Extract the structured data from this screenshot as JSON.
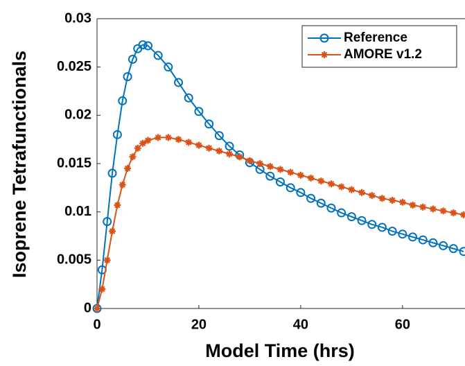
{
  "chart_data": {
    "type": "line",
    "xlabel": "Model Time (hrs)",
    "ylabel": "Isoprene Tetrafunctionals",
    "x": [
      0,
      1,
      2,
      3,
      4,
      5,
      6,
      7,
      8,
      9,
      10,
      12,
      14,
      16,
      18,
      20,
      22,
      24,
      26,
      28,
      30,
      32,
      34,
      36,
      38,
      40,
      42,
      44,
      46,
      48,
      50,
      52,
      54,
      56,
      58,
      60,
      62,
      64,
      66,
      68,
      70,
      72
    ],
    "series": [
      {
        "name": "Reference",
        "color": "#0072BD",
        "marker": "circle",
        "values": [
          0,
          0.004,
          0.009,
          0.014,
          0.018,
          0.0215,
          0.024,
          0.0258,
          0.0269,
          0.0273,
          0.0272,
          0.0262,
          0.025,
          0.0234,
          0.0218,
          0.0204,
          0.0191,
          0.0179,
          0.0168,
          0.0159,
          0.0151,
          0.0144,
          0.0137,
          0.0131,
          0.0125,
          0.012,
          0.0114,
          0.0109,
          0.0104,
          0.0099,
          0.0095,
          0.0091,
          0.0087,
          0.0084,
          0.008,
          0.0077,
          0.0074,
          0.0071,
          0.0068,
          0.0065,
          0.0062,
          0.0059
        ]
      },
      {
        "name": "AMORE v1.2",
        "color": "#D95319",
        "marker": "asterisk",
        "values": [
          0,
          0.002,
          0.005,
          0.008,
          0.0107,
          0.0128,
          0.0145,
          0.0157,
          0.0166,
          0.0171,
          0.0174,
          0.0177,
          0.0177,
          0.0175,
          0.0172,
          0.0169,
          0.0166,
          0.0163,
          0.016,
          0.0157,
          0.0153,
          0.015,
          0.0147,
          0.0144,
          0.0141,
          0.0138,
          0.0135,
          0.0132,
          0.0129,
          0.0126,
          0.0123,
          0.012,
          0.0117,
          0.0114,
          0.0112,
          0.011,
          0.0107,
          0.0105,
          0.0103,
          0.0101,
          0.0099,
          0.0097
        ]
      }
    ],
    "xlim": [
      0,
      72
    ],
    "xticks": [
      0,
      20,
      40,
      60
    ],
    "ylim": [
      0,
      0.03
    ],
    "yticks": [
      0,
      0.005,
      0.01,
      0.015,
      0.02,
      0.025,
      0.03
    ],
    "legend": "upper right",
    "grid": false
  }
}
